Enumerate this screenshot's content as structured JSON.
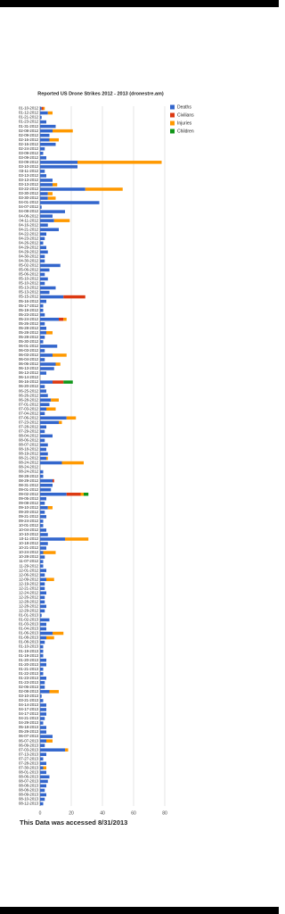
{
  "chart_data": {
    "type": "stacked-bar-horizontal",
    "title": "Reported US Drone Strikes 2012 - 2013 (dronestre.am)",
    "footer": "This Data was accessed 8/31/2013",
    "categories": [
      "01-10-2012",
      "01-12-2012",
      "01-21-2012",
      "01-23-2012",
      "01-31-2012",
      "02-08-2012",
      "02-09-2012",
      "02-16-2012",
      "02-16-2012",
      "02-24-2012",
      "03-09-2012",
      "03-09-2012",
      "03-09-2012",
      "03-10-2012",
      "03-11-2012",
      "03-13-2012",
      "03-13-2012",
      "03-13-2012",
      "03-22-2012",
      "03-30-2012",
      "03-30-2012",
      "04-01-2012",
      "04-07-2012",
      "04-08-2012",
      "04-08-2012",
      "04-11-2012",
      "04-16-2012",
      "04-21-2012",
      "04-22-2012",
      "04-23-2012",
      "04-26-2012",
      "04-29-2012",
      "04-29-2012",
      "04-30-2012",
      "04-30-2012",
      "05-02-2012",
      "05-06-2012",
      "05-06-2012",
      "05-10-2012",
      "05-10-2012",
      "05-13-2012",
      "05-13-2012",
      "05-15-2012",
      "05-16-2012",
      "05-17-2012",
      "05-19-2012",
      "05-23-2012",
      "05-24-2012",
      "05-26-2012",
      "05-28-2012",
      "05-28-2012",
      "05-28-2012",
      "05-30-2012",
      "06-01-2012",
      "06-03-2012",
      "06-03-2012",
      "06-04-2012",
      "06-06-2012",
      "06-13-2012",
      "06-13-2012",
      "06-14-2012",
      "06-16-2012",
      "06-20-2012",
      "06-25-2012",
      "06-26-2012",
      "06-28-2012",
      "07-01-2012",
      "07-03-2012",
      "07-04-2012",
      "07-06-2012",
      "07-23-2012",
      "07-28-2012",
      "07-29-2012",
      "08-04-2012",
      "08-06-2012",
      "08-07-2012",
      "08-18-2012",
      "08-19-2012",
      "08-21-2012",
      "08-24-2012",
      "08-24-2012",
      "08-24-2012",
      "08-28-2012",
      "08-29-2012",
      "08-31-2012",
      "09-01-2012",
      "09-02-2012",
      "09-05-2012",
      "09-08-2012",
      "09-10-2012",
      "09-20-2012",
      "09-21-2012",
      "09-24-2012",
      "10-01-2012",
      "10-04-2012",
      "10-10-2012",
      "10-11-2012",
      "10-18-2012",
      "10-21-2012",
      "10-24-2012",
      "10-28-2012",
      "11-07-2012",
      "11-29-2012",
      "12-01-2012",
      "12-06-2012",
      "12-09-2012",
      "12-19-2012",
      "12-21-2012",
      "12-24-2012",
      "12-26-2012",
      "12-28-2012",
      "12-28-2012",
      "12-29-2012",
      "01-01-2013",
      "01-02-2013",
      "01-03-2013",
      "01-04-2013",
      "01-06-2013",
      "01-08-2013",
      "01-08-2013",
      "01-10-2013",
      "01-19-2013",
      "01-19-2013",
      "01-20-2013",
      "01-20-2013",
      "01-21-2013",
      "01-22-2013",
      "01-23-2013",
      "01-23-2013",
      "02-06-2013",
      "02-08-2013",
      "03-10-2013",
      "03-21-2013",
      "04-14-2013",
      "04-17-2013",
      "04-17-2013",
      "04-21-2013",
      "04-29-2013",
      "05-18-2013",
      "05-29-2013",
      "06-07-2013",
      "06-07-2013",
      "06-09-2013",
      "07-03-2013",
      "07-13-2013",
      "07-27-2013",
      "07-28-2013",
      "07-30-2013",
      "08-01-2013",
      "08-06-2013",
      "08-07-2013",
      "08-08-2013",
      "08-08-2013",
      "08-09-2013",
      "08-10-2013",
      "08-12-2013"
    ],
    "series": [
      {
        "name": "Deaths",
        "color": "#3366cc",
        "values": [
          1,
          5,
          1,
          4,
          10,
          8,
          6,
          6,
          10,
          3,
          2,
          4,
          24,
          24,
          3,
          4,
          8,
          8,
          29,
          5,
          5,
          38,
          1,
          16,
          8,
          9,
          5,
          12,
          4,
          3,
          2,
          4,
          5,
          3,
          3,
          13,
          6,
          3,
          5,
          3,
          10,
          6,
          15,
          4,
          2,
          2,
          3,
          12,
          3,
          4,
          4,
          3,
          2,
          11,
          3,
          8,
          3,
          10,
          9,
          4,
          0,
          8,
          3,
          4,
          5,
          7,
          6,
          4,
          3,
          17,
          12,
          4,
          3,
          8,
          3,
          5,
          4,
          5,
          4,
          14,
          0,
          2,
          2,
          8,
          8,
          7,
          17,
          4,
          3,
          5,
          3,
          4,
          2,
          2,
          4,
          5,
          16,
          5,
          4,
          2,
          3,
          2,
          2,
          4,
          3,
          4,
          3,
          3,
          4,
          3,
          3,
          4,
          3,
          1,
          6,
          4,
          4,
          8,
          4,
          3,
          2,
          2,
          2,
          4,
          4,
          2,
          2,
          4,
          3,
          3,
          6,
          1,
          2,
          4,
          4,
          4,
          3,
          2,
          4,
          4,
          8,
          4,
          3,
          16,
          4,
          2,
          4,
          2,
          4,
          6,
          5,
          4,
          3,
          4,
          3,
          2
        ]
      },
      {
        "name": "Civilians",
        "color": "#dc3912",
        "values": [
          1,
          0,
          0,
          0,
          0,
          0,
          0,
          0,
          0,
          0,
          0,
          0,
          0,
          0,
          0,
          0,
          0,
          0,
          0,
          0,
          0,
          0,
          0,
          0,
          0,
          0,
          0,
          0,
          0,
          0,
          0,
          0,
          0,
          0,
          0,
          0,
          0,
          0,
          0,
          0,
          0,
          0,
          14,
          0,
          0,
          0,
          0,
          3,
          0,
          0,
          0,
          0,
          0,
          0,
          0,
          0,
          0,
          0,
          0,
          0,
          0,
          7,
          0,
          0,
          0,
          0,
          0,
          0,
          0,
          0,
          0,
          0,
          0,
          0,
          0,
          0,
          0,
          0,
          0,
          0,
          0,
          0,
          0,
          1,
          0,
          0,
          9,
          0,
          0,
          0,
          0,
          0,
          0,
          0,
          0,
          0,
          0,
          0,
          0,
          0,
          0,
          0,
          0,
          0,
          0,
          0,
          0,
          0,
          0,
          0,
          0,
          0,
          0,
          0,
          0,
          0,
          0,
          0,
          0,
          0,
          0,
          0,
          0,
          0,
          0,
          0,
          0,
          0,
          0,
          0,
          0,
          0,
          0,
          0,
          0,
          0,
          0,
          0,
          0,
          0,
          0,
          0,
          0,
          0,
          0,
          0,
          0,
          0,
          0,
          0,
          0,
          0,
          0,
          0,
          0,
          0
        ]
      },
      {
        "name": "Injuries",
        "color": "#ff9900",
        "values": [
          1,
          3,
          0,
          0,
          0,
          13,
          0,
          6,
          0,
          0,
          0,
          0,
          54,
          0,
          0,
          0,
          0,
          3,
          24,
          3,
          5,
          0,
          0,
          0,
          0,
          10,
          0,
          0,
          0,
          0,
          0,
          0,
          0,
          0,
          0,
          0,
          0,
          0,
          0,
          0,
          0,
          0,
          0,
          0,
          0,
          0,
          0,
          2,
          0,
          0,
          4,
          0,
          0,
          0,
          0,
          9,
          0,
          3,
          0,
          0,
          0,
          0,
          0,
          0,
          0,
          5,
          0,
          6,
          0,
          6,
          2,
          0,
          0,
          0,
          0,
          0,
          0,
          0,
          1,
          14,
          0,
          0,
          0,
          0,
          0,
          0,
          2,
          0,
          0,
          3,
          0,
          0,
          0,
          0,
          0,
          0,
          15,
          0,
          0,
          8,
          0,
          0,
          0,
          0,
          0,
          5,
          0,
          0,
          0,
          0,
          0,
          0,
          0,
          0,
          0,
          0,
          0,
          7,
          5,
          0,
          0,
          0,
          0,
          0,
          0,
          0,
          0,
          0,
          0,
          0,
          6,
          0,
          0,
          0,
          0,
          0,
          0,
          0,
          0,
          0,
          0,
          4,
          0,
          2,
          0,
          0,
          0,
          2,
          0,
          0,
          0,
          0,
          0,
          0,
          0,
          0
        ]
      },
      {
        "name": "Children",
        "color": "#109618",
        "values": [
          0,
          0,
          0,
          0,
          0,
          0,
          0,
          0,
          0,
          0,
          0,
          0,
          0,
          0,
          0,
          0,
          0,
          0,
          0,
          0,
          0,
          0,
          0,
          0,
          0,
          0,
          0,
          0,
          0,
          0,
          0,
          0,
          0,
          0,
          0,
          0,
          0,
          0,
          0,
          0,
          0,
          0,
          0,
          0,
          0,
          0,
          0,
          0,
          0,
          0,
          0,
          0,
          0,
          0,
          0,
          0,
          0,
          0,
          0,
          0,
          0,
          6,
          0,
          0,
          0,
          0,
          0,
          0,
          0,
          0,
          0,
          0,
          0,
          0,
          0,
          0,
          0,
          0,
          0,
          0,
          0,
          0,
          0,
          0,
          0,
          0,
          3,
          0,
          0,
          0,
          0,
          0,
          0,
          0,
          0,
          0,
          0,
          0,
          0,
          0,
          0,
          0,
          0,
          0,
          0,
          0,
          0,
          0,
          0,
          0,
          0,
          0,
          0,
          0,
          0,
          0,
          0,
          0,
          0,
          0,
          0,
          0,
          0,
          0,
          0,
          0,
          0,
          0,
          0,
          0,
          0,
          0,
          0,
          0,
          0,
          0,
          0,
          0,
          0,
          0,
          0,
          0,
          0,
          0,
          0,
          0,
          0,
          0,
          0,
          0,
          0,
          0,
          0,
          0,
          0,
          0
        ]
      }
    ],
    "xlim": [
      0,
      80
    ],
    "xticks": [
      0,
      20,
      40,
      60,
      80
    ],
    "grid": true,
    "legend": "right"
  }
}
